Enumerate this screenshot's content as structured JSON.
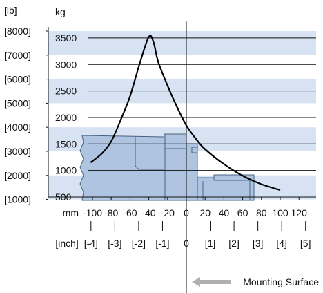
{
  "chart_data": {
    "type": "line",
    "title": "",
    "ylabel_primary": "kg",
    "ylabel_secondary": "[lb]",
    "xlabel_primary": "mm",
    "xlabel_secondary": "[inch]",
    "xlim": [
      -100,
      120
    ],
    "ylim": [
      500,
      3500
    ],
    "y_ticks": [
      500,
      1000,
      1500,
      2000,
      2500,
      3000,
      3500
    ],
    "y_tick_labels": [
      "500",
      "1000",
      "1500",
      "2000",
      "2500",
      "3000",
      "3500"
    ],
    "y_secondary_ticks": [
      1000,
      2000,
      3000,
      4000,
      5000,
      6000,
      7000,
      8000
    ],
    "y_secondary_tick_labels": [
      "[1000]",
      "[2000]",
      "[3000]",
      "[4000]",
      "[5000]",
      "[6000]",
      "[7000]",
      "[8000]"
    ],
    "x_ticks": [
      -100,
      -80,
      -60,
      -40,
      -20,
      0,
      20,
      40,
      60,
      80,
      100,
      120
    ],
    "x_tick_labels": [
      "-100",
      "-80",
      "-60",
      "-40",
      "-20",
      "0",
      "20",
      "40",
      "60",
      "80",
      "100",
      "120"
    ],
    "x_secondary_ticks": [
      -4,
      -3,
      -2,
      -1,
      0,
      1,
      2,
      3,
      4,
      5
    ],
    "x_secondary_tick_labels": [
      "[-4]",
      "[-3]",
      "[-2]",
      "[-1]",
      "0",
      "[1]",
      "[2]",
      "[3]",
      "[4]",
      "[5]"
    ],
    "grid": true,
    "series": [
      {
        "values": [
          [
            -102,
            1150
          ],
          [
            -90,
            1320
          ],
          [
            -80,
            1550
          ],
          [
            -70,
            1950
          ],
          [
            -60,
            2400
          ],
          [
            -50,
            3000
          ],
          [
            -40,
            3520
          ],
          [
            -35,
            3420
          ],
          [
            -30,
            3050
          ],
          [
            -20,
            2600
          ],
          [
            -10,
            2200
          ],
          [
            0,
            1850
          ],
          [
            10,
            1600
          ],
          [
            20,
            1400
          ],
          [
            40,
            1120
          ],
          [
            60,
            900
          ],
          [
            80,
            740
          ],
          [
            100,
            630
          ]
        ]
      }
    ],
    "annotations": [
      "Mounting Surface"
    ],
    "colors": {
      "band": "#d7e3f2",
      "part_fill": "#aec4e0",
      "part_stroke": "#4a6480",
      "curve": "#000000",
      "arrow": "#b0b0b0"
    }
  }
}
